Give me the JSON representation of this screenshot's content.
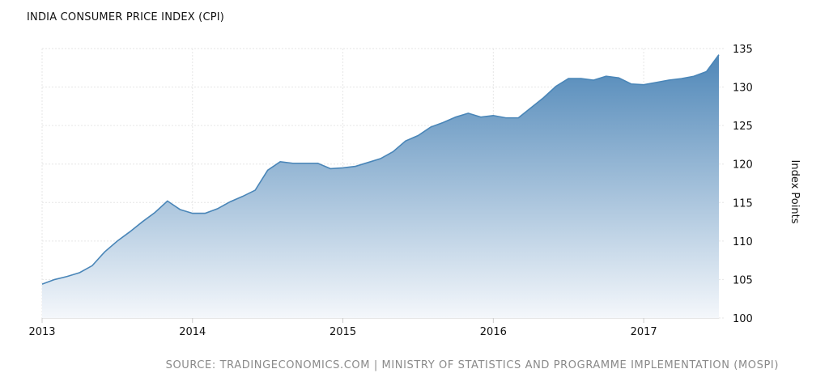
{
  "title": "INDIA CONSUMER PRICE INDEX (CPI)",
  "source": "SOURCE: TRADINGECONOMICS.COM | MINISTRY OF STATISTICS AND PROGRAMME IMPLEMENTATION (MOSPI)",
  "colors": {
    "line": "#4a86b8",
    "fill_top": "#4f87b8",
    "fill_bottom": "#f4f7fb",
    "grid": "#e6e6e6"
  },
  "chart_data": {
    "type": "area",
    "title": "INDIA CONSUMER PRICE INDEX (CPI)",
    "xlabel": "",
    "ylabel": "Index Points",
    "xlim": [
      "2013-01",
      "2017-07"
    ],
    "ylim": [
      100,
      135
    ],
    "x_ticks": [
      "2013",
      "2014",
      "2015",
      "2016",
      "2017"
    ],
    "y_ticks": [
      100,
      105,
      110,
      115,
      120,
      125,
      130,
      135
    ],
    "grid": true,
    "series": [
      {
        "x": [
          "2013-01",
          "2013-02",
          "2013-03",
          "2013-04",
          "2013-05",
          "2013-06",
          "2013-07",
          "2013-08",
          "2013-09",
          "2013-10",
          "2013-11",
          "2013-12",
          "2014-01",
          "2014-02",
          "2014-03",
          "2014-04",
          "2014-05",
          "2014-06",
          "2014-07",
          "2014-08",
          "2014-09",
          "2014-10",
          "2014-11",
          "2014-12",
          "2015-01",
          "2015-02",
          "2015-03",
          "2015-04",
          "2015-05",
          "2015-06",
          "2015-07",
          "2015-08",
          "2015-09",
          "2015-10",
          "2015-11",
          "2015-12",
          "2016-01",
          "2016-02",
          "2016-03",
          "2016-04",
          "2016-05",
          "2016-06",
          "2016-07",
          "2016-08",
          "2016-09",
          "2016-10",
          "2016-11",
          "2016-12",
          "2017-01",
          "2017-02",
          "2017-03",
          "2017-04",
          "2017-05",
          "2017-06",
          "2017-07"
        ],
        "values": [
          104.4,
          105.0,
          105.4,
          105.9,
          106.8,
          108.6,
          110.0,
          111.2,
          112.5,
          113.7,
          115.2,
          114.1,
          113.6,
          113.6,
          114.2,
          115.1,
          115.8,
          116.6,
          119.2,
          120.3,
          120.1,
          120.1,
          120.1,
          119.4,
          119.5,
          119.7,
          120.2,
          120.7,
          121.6,
          123.0,
          123.7,
          124.8,
          125.4,
          126.1,
          126.6,
          126.1,
          126.3,
          126.0,
          126.0,
          127.3,
          128.6,
          130.1,
          131.1,
          131.1,
          130.9,
          131.4,
          131.2,
          130.4,
          130.3,
          130.6,
          130.9,
          131.1,
          131.4,
          132.0,
          134.2
        ]
      }
    ]
  }
}
